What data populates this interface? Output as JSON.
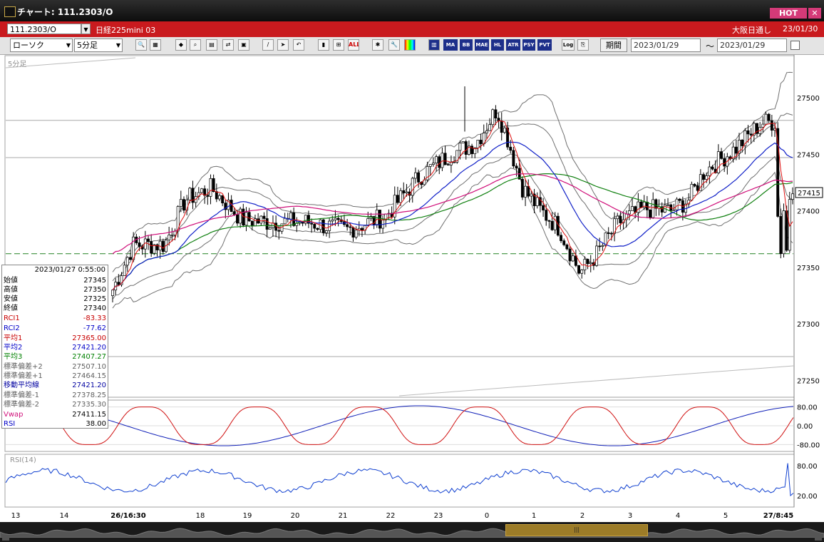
{
  "window": {
    "title": "チャート: 111.2303/O",
    "hot_label": "HOT",
    "close_label": "✕"
  },
  "symbol": {
    "code": "111.2303/O",
    "name": "日経225mini 03",
    "exchange": "大阪日通し",
    "date": "23/01/30"
  },
  "toolbar": {
    "chart_type": "ローソク",
    "interval": "5分足",
    "period_label": "期間",
    "date_from": "2023/01/29",
    "date_to": "2023/01/29",
    "tilde": "～",
    "text_buttons": [
      "MA",
      "BB",
      "MAE",
      "HL",
      "ATR",
      "PSY",
      "PVT",
      "Log"
    ]
  },
  "chart": {
    "pane_label": "5分足",
    "current_price": "27415",
    "price_ticks": [
      "27500",
      "27450",
      "27400",
      "27350",
      "27300",
      "27250"
    ],
    "rci_pane_ticks": [
      "80.00",
      "0.00",
      "-80.00"
    ],
    "rsi_pane_label": "RSI(14)",
    "rsi_pane_ticks": [
      "80.00",
      "20.00"
    ],
    "x_ticks": [
      "13",
      "14",
      "26/16:30",
      "18",
      "19",
      "20",
      "21",
      "22",
      "23",
      "0",
      "1",
      "2",
      "3",
      "4",
      "5",
      "27/8:45"
    ],
    "price_range": [
      27220,
      27520
    ],
    "price_tick_values": [
      27500,
      27450,
      27400,
      27350,
      27300,
      27250
    ],
    "rci_range": [
      -100,
      100
    ],
    "rci_tick_values": [
      80,
      0,
      -80
    ],
    "rsi_range": [
      0,
      100
    ],
    "rsi_tick_values": [
      80,
      20
    ],
    "colors": {
      "ma1": "#e01010",
      "ma2": "#1020c8",
      "ma3": "#108010",
      "vwap": "#d0107a",
      "bands": "#707070",
      "rci1": "#d01010",
      "rci2": "#1020b8",
      "rsi": "#1040d0",
      "candle_up": "#ffffff",
      "candle_down": "#000000"
    }
  },
  "info": {
    "timestamp": "2023/01/27  0:55:00",
    "rows": [
      {
        "label": "始値",
        "value": "27345",
        "color": "#000000"
      },
      {
        "label": "高値",
        "value": "27350",
        "color": "#000000"
      },
      {
        "label": "安値",
        "value": "27325",
        "color": "#000000"
      },
      {
        "label": "終値",
        "value": "27340",
        "color": "#000000"
      },
      {
        "label": "RCI1",
        "value": "-83.33",
        "color": "#c80000"
      },
      {
        "label": "RCI2",
        "value": "-77.62",
        "color": "#0000c8"
      },
      {
        "label": "平均1",
        "value": "27365.00",
        "color": "#c80000"
      },
      {
        "label": "平均2",
        "value": "27421.20",
        "color": "#0000c8"
      },
      {
        "label": "平均3",
        "value": "27407.27",
        "color": "#008000"
      },
      {
        "label": "標準偏差+2",
        "value": "27507.10",
        "color": "#606060"
      },
      {
        "label": "標準偏差+1",
        "value": "27464.15",
        "color": "#606060"
      },
      {
        "label": "移動平均線",
        "value": "27421.20",
        "color": "#0000a0"
      },
      {
        "label": "標準偏差-1",
        "value": "27378.25",
        "color": "#606060"
      },
      {
        "label": "標準偏差-2",
        "value": "27335.30",
        "color": "#606060"
      },
      {
        "label": "Vwap",
        "value": "27411.15",
        "color": "#d0107a"
      },
      {
        "label": "RSI",
        "value": "38.00",
        "color": "#0000c8"
      }
    ]
  }
}
